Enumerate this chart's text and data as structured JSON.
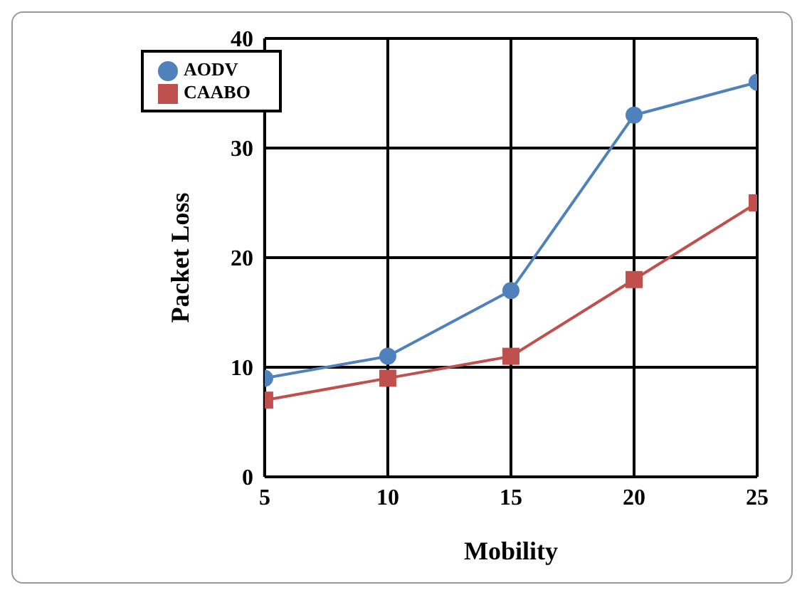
{
  "chart_data": {
    "type": "line",
    "xlabel": "Mobility",
    "ylabel": "Packet Loss",
    "x": [
      5,
      10,
      15,
      20,
      25
    ],
    "series": [
      {
        "name": "AODV",
        "color": "#4f81bd",
        "values": [
          9,
          11,
          17,
          33,
          36
        ],
        "marker": "circle"
      },
      {
        "name": "CAABO",
        "color": "#c0504d",
        "values": [
          7,
          9,
          11,
          18,
          25
        ],
        "marker": "square"
      }
    ],
    "xlim": [
      5,
      25
    ],
    "xticks": [
      5,
      10,
      15,
      20,
      25
    ],
    "ylim": [
      0,
      40
    ],
    "yticks": [
      0,
      10,
      20,
      30,
      40
    ],
    "grid": true,
    "legend": "top left",
    "line_style": "solid"
  }
}
